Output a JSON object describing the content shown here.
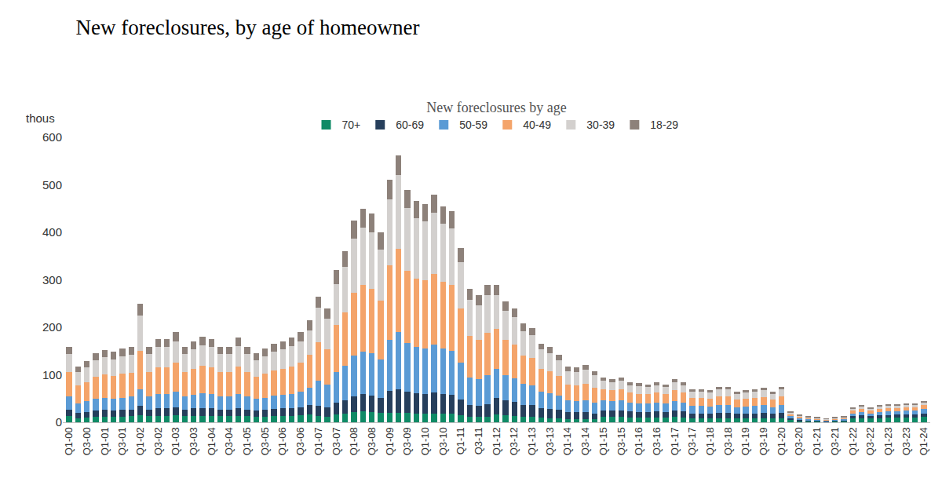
{
  "chart_data": {
    "type": "bar",
    "title": "New foreclosures, by age of homeowner",
    "y_label": "thous",
    "legend_title": "New foreclosures by age",
    "legend": "top",
    "stacked": true,
    "grid": false,
    "ylim": [
      0,
      600
    ],
    "yticks": [
      0,
      100,
      200,
      300,
      400,
      500,
      600
    ],
    "categories": [
      "Q1-00",
      null,
      "Q3-00",
      null,
      "Q1-01",
      null,
      "Q3-01",
      null,
      "Q1-02",
      null,
      "Q3-02",
      null,
      "Q1-03",
      null,
      "Q3-03",
      null,
      "Q1-04",
      null,
      "Q3-04",
      null,
      "Q1-05",
      null,
      "Q3-05",
      null,
      "Q1-06",
      null,
      "Q3-06",
      null,
      "Q1-07",
      null,
      "Q3-07",
      null,
      "Q1-08",
      null,
      "Q3-08",
      null,
      "Q1-09",
      null,
      "Q3-09",
      null,
      "Q1-10",
      null,
      "Q3-10",
      null,
      "Q1-11",
      null,
      "Q3-11",
      null,
      "Q1-12",
      null,
      "Q3-12",
      null,
      "Q1-13",
      null,
      "Q3-13",
      null,
      "Q1-14",
      null,
      "Q3-14",
      null,
      "Q1-15",
      null,
      "Q3-15",
      null,
      "Q1-16",
      null,
      "Q3-16",
      null,
      "Q1-17",
      null,
      "Q3-17",
      null,
      "Q1-18",
      null,
      "Q3-18",
      null,
      "Q1-19",
      null,
      "Q3-19",
      null,
      "Q1-20",
      null,
      "Q3-20",
      null,
      "Q1-21",
      null,
      "Q3-21",
      null,
      "Q1-22",
      null,
      "Q3-22",
      null,
      "Q1-23",
      null,
      "Q3-23",
      null,
      "Q1-24"
    ],
    "series": [
      {
        "name": "70+",
        "color": "#0f8a66",
        "values": [
          13,
          9,
          10,
          12,
          12,
          12,
          12,
          13,
          15,
          13,
          14,
          14,
          15,
          13,
          14,
          14,
          14,
          13,
          13,
          14,
          13,
          12,
          12,
          13,
          14,
          14,
          15,
          17,
          13,
          12,
          16,
          18,
          21,
          23,
          22,
          20,
          20,
          20,
          20,
          19,
          18,
          19,
          18,
          18,
          15,
          11,
          11,
          12,
          17,
          15,
          14,
          12,
          12,
          10,
          9,
          9,
          7,
          7,
          7,
          6,
          11,
          11,
          11,
          10,
          10,
          10,
          10,
          10,
          11,
          10,
          8,
          8,
          8,
          9,
          9,
          8,
          8,
          8,
          9,
          8,
          9,
          4.4,
          3,
          2.4,
          2,
          1.6,
          2,
          2.4,
          7.5,
          8.8,
          7.5,
          8.8,
          9.3,
          9.5,
          10,
          10,
          11.3
        ]
      },
      {
        "name": "60-69",
        "color": "#263f5c",
        "values": [
          14,
          11,
          12,
          13,
          14,
          13,
          14,
          14,
          20,
          14,
          16,
          16,
          17,
          14,
          15,
          16,
          16,
          14,
          14,
          16,
          14,
          13,
          14,
          15,
          15,
          16,
          17,
          19,
          21,
          19,
          26,
          29,
          34,
          36,
          35,
          32,
          46,
          50,
          44,
          42,
          41,
          43,
          41,
          40,
          33,
          25,
          24,
          26,
          35,
          31,
          29,
          25,
          24,
          20,
          19,
          17,
          14,
          14,
          14,
          13,
          14,
          14,
          14,
          13,
          12,
          12,
          13,
          12,
          14,
          13,
          11,
          11,
          10,
          11,
          11,
          10,
          10,
          11,
          11,
          10,
          11,
          4.4,
          3,
          2.4,
          2,
          1.6,
          2,
          2.4,
          5.1,
          6,
          5.1,
          6,
          6.3,
          6.5,
          6.8,
          6.8,
          7.7
        ]
      },
      {
        "name": "50-59",
        "color": "#5b9bd5",
        "values": [
          27,
          20,
          22,
          25,
          26,
          25,
          26,
          27,
          35,
          27,
          30,
          30,
          32,
          27,
          29,
          31,
          30,
          27,
          27,
          30,
          27,
          25,
          26,
          28,
          29,
          30,
          32,
          37,
          53,
          48,
          64,
          72,
          85,
          90,
          88,
          80,
          107,
          120,
          103,
          98,
          97,
          101,
          96,
          93,
          77,
          59,
          56,
          61,
          61,
          54,
          50,
          44,
          42,
          35,
          33,
          30,
          25,
          24,
          25,
          23,
          21,
          20,
          21,
          19,
          18,
          18,
          19,
          18,
          20,
          19,
          15,
          15,
          15,
          17,
          17,
          14,
          15,
          15,
          16,
          14,
          17,
          4.4,
          3,
          2.4,
          2,
          1.6,
          2,
          2.4,
          6,
          7,
          6,
          7,
          7.4,
          7.6,
          8,
          8,
          9
        ]
      },
      {
        "name": "40-49",
        "color": "#f4a46a",
        "values": [
          51,
          38,
          41,
          46,
          49,
          47,
          50,
          50,
          80,
          51,
          56,
          56,
          61,
          51,
          54,
          58,
          56,
          51,
          51,
          57,
          51,
          46,
          50,
          53,
          54,
          57,
          61,
          69,
          82,
          74,
          99,
          112,
          132,
          140,
          136,
          124,
          158,
          175,
          152,
          144,
          143,
          149,
          141,
          138,
          114,
          87,
          83,
          90,
          84,
          74,
          70,
          60,
          57,
          48,
          46,
          41,
          34,
          33,
          35,
          31,
          23,
          22,
          23,
          20,
          20,
          19,
          20,
          19,
          22,
          20,
          17,
          17,
          16,
          18,
          18,
          16,
          16,
          17,
          17,
          16,
          18,
          4.4,
          3,
          2.4,
          2,
          1.6,
          2,
          2.4,
          5.4,
          6.3,
          5.4,
          6.3,
          6.7,
          6.8,
          7.2,
          7.2,
          8.1
        ]
      },
      {
        "name": "30-39",
        "color": "#d3d0ce",
        "values": [
          38,
          28,
          31,
          35,
          36,
          36,
          37,
          38,
          75,
          38,
          42,
          42,
          46,
          38,
          41,
          43,
          42,
          38,
          38,
          43,
          38,
          35,
          37,
          40,
          41,
          43,
          46,
          52,
          72,
          65,
          86,
          97,
          115,
          121,
          119,
          108,
          138,
          155,
          132,
          126,
          124,
          130,
          123,
          120,
          99,
          76,
          72,
          78,
          70,
          61,
          58,
          50,
          48,
          40,
          38,
          34,
          28,
          28,
          29,
          26,
          18,
          17,
          18,
          16,
          16,
          15,
          16,
          15,
          17,
          16,
          13,
          13,
          13,
          14,
          14,
          12,
          13,
          13,
          14,
          12,
          14,
          3.3,
          2.3,
          1.8,
          1.5,
          1.2,
          1.5,
          1.8,
          4.5,
          5.3,
          4.5,
          5.3,
          5.6,
          5.7,
          6,
          6,
          6.8
        ]
      },
      {
        "name": "18-29",
        "color": "#8d817a",
        "values": [
          16,
          12,
          13,
          15,
          15,
          15,
          16,
          16,
          25,
          16,
          17,
          17,
          19,
          16,
          17,
          18,
          17,
          16,
          16,
          18,
          16,
          15,
          16,
          16,
          17,
          18,
          19,
          21,
          24,
          22,
          29,
          32,
          38,
          40,
          40,
          36,
          41,
          42,
          39,
          37,
          37,
          38,
          36,
          36,
          29,
          23,
          21,
          23,
          23,
          20,
          19,
          17,
          16,
          13,
          13,
          11,
          9,
          9,
          10,
          9,
          8,
          7,
          8,
          7,
          7,
          6,
          7,
          6,
          7,
          7,
          6,
          6,
          5,
          6,
          6,
          5,
          5,
          6,
          6,
          5,
          6,
          1.1,
          0.8,
          0.6,
          0.5,
          0.4,
          0.5,
          0.6,
          1.5,
          1.8,
          1.5,
          1.8,
          1.9,
          1.9,
          2,
          2,
          2.3
        ]
      }
    ]
  }
}
